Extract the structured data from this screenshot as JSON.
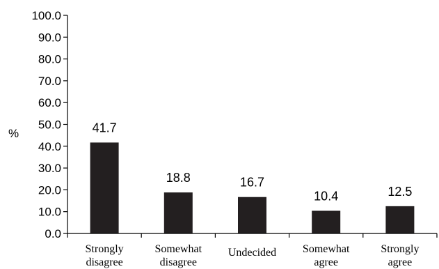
{
  "chart_data": {
    "type": "bar",
    "ylabel": "%",
    "ylim": [
      0,
      100
    ],
    "yticks": [
      "0.0",
      "10.0",
      "20.0",
      "30.0",
      "40.0",
      "50.0",
      "60.0",
      "70.0",
      "80.0",
      "90.0",
      "100.0"
    ],
    "categories": [
      [
        "Strongly",
        "disagree"
      ],
      [
        "Somewhat",
        "disagree"
      ],
      [
        "Undecided"
      ],
      [
        "Somewhat",
        "agree"
      ],
      [
        "Strongly",
        "agree"
      ]
    ],
    "values": [
      41.7,
      18.8,
      16.7,
      10.4,
      12.5
    ],
    "data_labels": [
      "41.7",
      "18.8",
      "16.7",
      "10.4",
      "12.5"
    ],
    "bar_color": "#231f20",
    "grid": false
  }
}
